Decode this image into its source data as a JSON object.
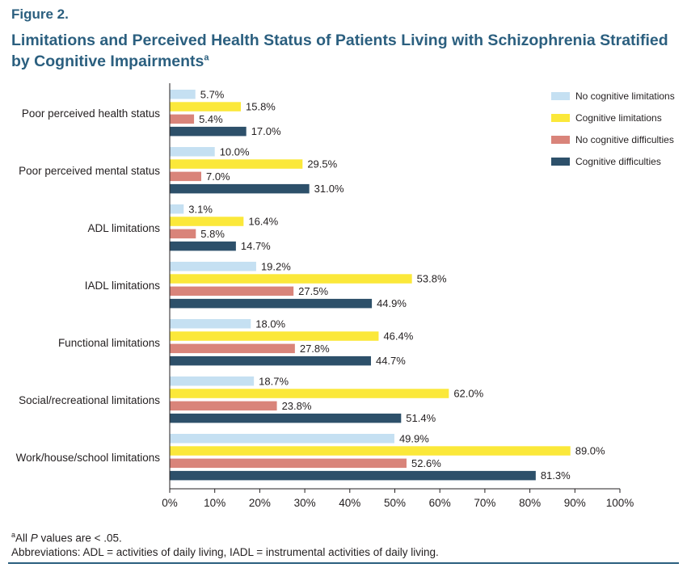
{
  "figure_label": "Figure 2.",
  "title_text": "Limitations and Perceived Health Status of Patients Living with Schizophrenia Stratified by Cognitive Impairments",
  "title_sup": "a",
  "footnote": {
    "sup": "a",
    "text_pre": "All ",
    "italic": "P",
    "text_post": " values are < .05."
  },
  "abbreviations": "Abbreviations: ADL = activities of daily living, IADL = instrumental activities of daily living.",
  "colors": {
    "title": "#2b5f7f",
    "axis": "#231f20",
    "rule": "#2b5f7f"
  },
  "chart_data": {
    "type": "bar",
    "orientation": "horizontal",
    "categories": [
      "Poor perceived health status",
      "Poor perceived mental status",
      "ADL limitations",
      "IADL limitations",
      "Functional limitations",
      "Social/recreational limitations",
      "Work/house/school limitations"
    ],
    "series": [
      {
        "name": "No cognitive limitations",
        "color": "#c5e0f2",
        "values": [
          5.7,
          10.0,
          3.1,
          19.2,
          18.0,
          18.7,
          49.9
        ],
        "labels": [
          "5.7%",
          "10.0%",
          "3.1%",
          "19.2%",
          "18.0%",
          "18.7%",
          "49.9%"
        ]
      },
      {
        "name": "Cognitive limitations",
        "color": "#fbe83a",
        "values": [
          15.8,
          29.5,
          16.4,
          53.8,
          46.4,
          62.0,
          89.0
        ],
        "labels": [
          "15.8%",
          "29.5%",
          "16.4%",
          "53.8%",
          "46.4%",
          "62.0%",
          "89.0%"
        ]
      },
      {
        "name": "No cognitive difficulties",
        "color": "#d9847a",
        "values": [
          5.4,
          7.0,
          5.8,
          27.5,
          27.8,
          23.8,
          52.6
        ],
        "labels": [
          "5.4%",
          "7.0%",
          "5.8%",
          "27.5%",
          "27.8%",
          "23.8%",
          "52.6%"
        ]
      },
      {
        "name": "Cognitive difficulties",
        "color": "#2d506a",
        "values": [
          17.0,
          31.0,
          14.7,
          44.9,
          44.7,
          51.4,
          81.3
        ],
        "labels": [
          "17.0%",
          "31.0%",
          "14.7%",
          "44.9%",
          "44.7%",
          "51.4%",
          "81.3%"
        ]
      }
    ],
    "xlim": [
      0,
      100
    ],
    "xticks": [
      "0%",
      "10%",
      "20%",
      "30%",
      "40%",
      "50%",
      "60%",
      "70%",
      "80%",
      "90%",
      "100%"
    ],
    "grid": false,
    "legend_position": "top-right"
  }
}
